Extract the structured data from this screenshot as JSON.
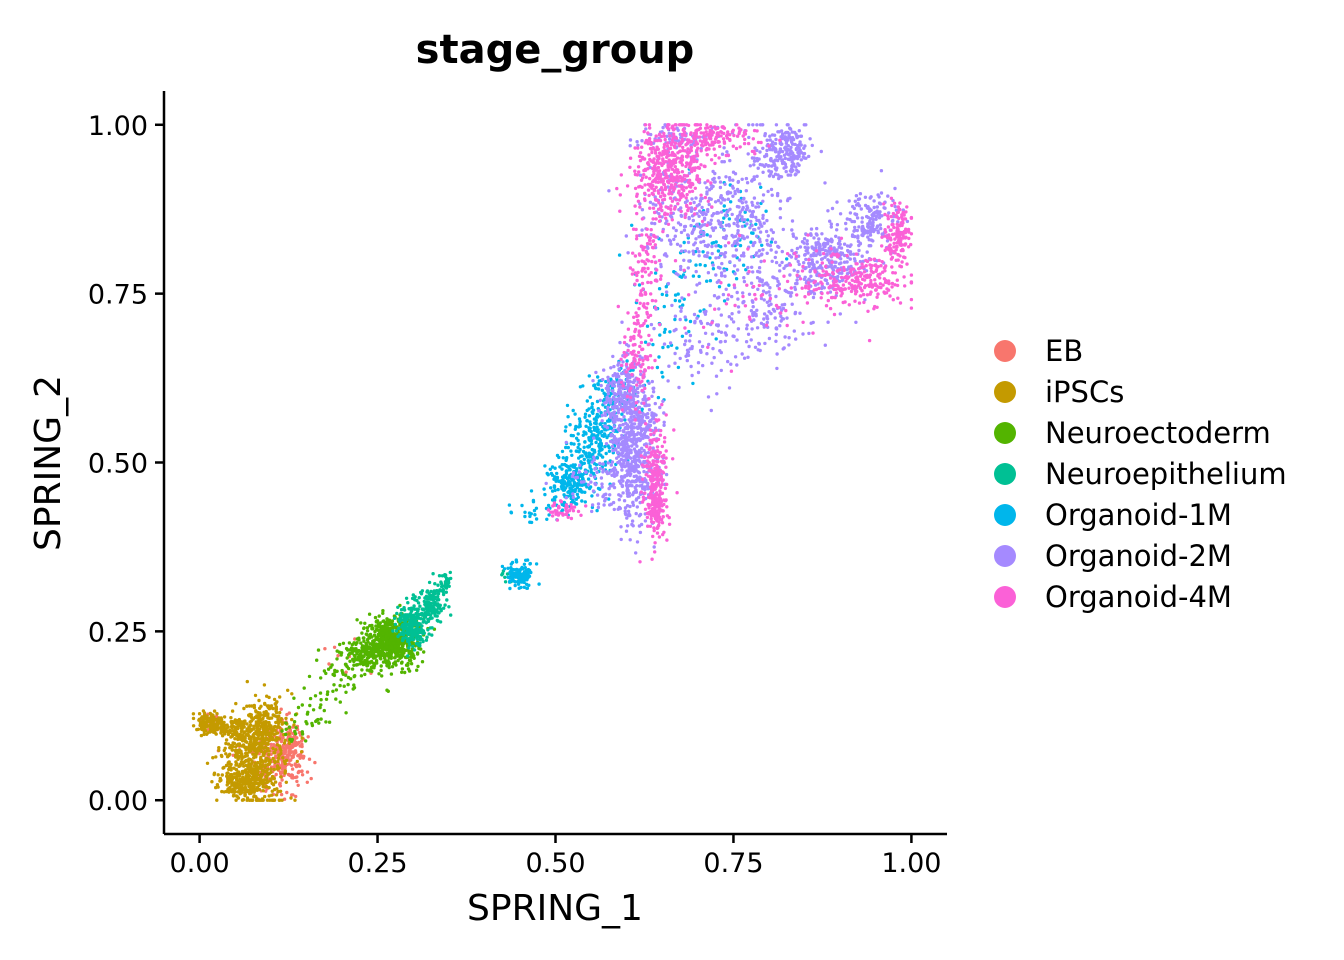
{
  "chart_data": {
    "type": "scatter",
    "title": "stage_group",
    "xlabel": "SPRING_1",
    "ylabel": "SPRING_2",
    "xlim": [
      -0.05,
      1.05
    ],
    "ylim": [
      -0.05,
      1.05
    ],
    "x_ticks": [
      {
        "value": 0.0,
        "label": "0.00"
      },
      {
        "value": 0.25,
        "label": "0.25"
      },
      {
        "value": 0.5,
        "label": "0.50"
      },
      {
        "value": 0.75,
        "label": "0.75"
      },
      {
        "value": 1.0,
        "label": "1.00"
      }
    ],
    "y_ticks": [
      {
        "value": 0.0,
        "label": "0.00"
      },
      {
        "value": 0.25,
        "label": "0.25"
      },
      {
        "value": 0.5,
        "label": "0.50"
      },
      {
        "value": 0.75,
        "label": "0.75"
      },
      {
        "value": 1.0,
        "label": "1.00"
      }
    ],
    "grid": false,
    "legend_position": "right",
    "series": [
      {
        "name": "EB",
        "color": "#F8766D",
        "clusters": [
          {
            "center": [
              0.115,
              0.06
            ],
            "spread": [
              0.018,
              0.028
            ],
            "count": 220
          },
          {
            "center": [
              0.13,
              0.08
            ],
            "spread": [
              0.008,
              0.015
            ],
            "count": 60
          },
          {
            "center": [
              0.09,
              0.05
            ],
            "spread": [
              0.02,
              0.02
            ],
            "count": 40
          },
          {
            "center": [
              0.015,
              0.115
            ],
            "spread": [
              0.01,
              0.006
            ],
            "count": 25
          },
          {
            "center": [
              0.22,
              0.22
            ],
            "spread": [
              0.03,
              0.015
            ],
            "count": 14
          }
        ]
      },
      {
        "name": "iPSCs",
        "color": "#C49A00",
        "clusters": [
          {
            "center": [
              0.075,
              0.06
            ],
            "spread": [
              0.022,
              0.035
            ],
            "count": 520
          },
          {
            "center": [
              0.065,
              0.025
            ],
            "spread": [
              0.015,
              0.01
            ],
            "count": 140
          },
          {
            "center": [
              0.09,
              0.11
            ],
            "spread": [
              0.015,
              0.02
            ],
            "count": 160
          },
          {
            "center": [
              0.015,
              0.115
            ],
            "spread": [
              0.01,
              0.008
            ],
            "count": 140
          },
          {
            "center": [
              0.045,
              0.105
            ],
            "spread": [
              0.012,
              0.008
            ],
            "count": 60
          },
          {
            "center": [
              0.1,
              0.14
            ],
            "spread": [
              0.008,
              0.006
            ],
            "count": 20
          }
        ]
      },
      {
        "name": "Neuroectoderm",
        "color": "#53B400",
        "clusters": [
          {
            "center": [
              0.27,
              0.235
            ],
            "spread": [
              0.018,
              0.018
            ],
            "count": 650
          },
          {
            "center": [
              0.23,
              0.215
            ],
            "spread": [
              0.015,
              0.012
            ],
            "count": 130
          },
          {
            "center": [
              0.2,
              0.18
            ],
            "spread": [
              0.018,
              0.018
            ],
            "count": 45
          },
          {
            "center": [
              0.16,
              0.13
            ],
            "spread": [
              0.015,
              0.018
            ],
            "count": 30
          },
          {
            "center": [
              0.13,
              0.1
            ],
            "spread": [
              0.012,
              0.012
            ],
            "count": 14
          }
        ]
      },
      {
        "name": "Neuroepithelium",
        "color": "#00C094",
        "clusters": [
          {
            "center": [
              0.3,
              0.26
            ],
            "spread": [
              0.012,
              0.015
            ],
            "count": 240
          },
          {
            "center": [
              0.325,
              0.29
            ],
            "spread": [
              0.01,
              0.012
            ],
            "count": 130
          },
          {
            "center": [
              0.345,
              0.32
            ],
            "spread": [
              0.006,
              0.008
            ],
            "count": 35
          },
          {
            "center": [
              0.43,
              0.33
            ],
            "spread": [
              0.008,
              0.006
            ],
            "count": 10
          }
        ]
      },
      {
        "name": "Organoid-1M",
        "color": "#00B6EB",
        "clusters": [
          {
            "center": [
              0.45,
              0.335
            ],
            "spread": [
              0.008,
              0.008
            ],
            "count": 130
          },
          {
            "center": [
              0.52,
              0.47
            ],
            "spread": [
              0.015,
              0.022
            ],
            "count": 210
          },
          {
            "center": [
              0.555,
              0.53
            ],
            "spread": [
              0.018,
              0.03
            ],
            "count": 240
          },
          {
            "center": [
              0.59,
              0.6
            ],
            "spread": [
              0.018,
              0.02
            ],
            "count": 110
          },
          {
            "center": [
              0.47,
              0.43
            ],
            "spread": [
              0.02,
              0.012
            ],
            "count": 25
          },
          {
            "center": [
              0.66,
              0.73
            ],
            "spread": [
              0.03,
              0.06
            ],
            "count": 55
          },
          {
            "center": [
              0.74,
              0.85
            ],
            "spread": [
              0.03,
              0.04
            ],
            "count": 60
          },
          {
            "center": [
              0.7,
              0.79
            ],
            "spread": [
              0.03,
              0.03
            ],
            "count": 30
          }
        ]
      },
      {
        "name": "Organoid-2M",
        "color": "#A58AFF",
        "clusters": [
          {
            "center": [
              0.61,
              0.53
            ],
            "spread": [
              0.018,
              0.06
            ],
            "count": 650
          },
          {
            "center": [
              0.59,
              0.6
            ],
            "spread": [
              0.015,
              0.02
            ],
            "count": 130
          },
          {
            "center": [
              0.56,
              0.47
            ],
            "spread": [
              0.025,
              0.02
            ],
            "count": 70
          },
          {
            "center": [
              0.76,
              0.86
            ],
            "spread": [
              0.035,
              0.06
            ],
            "count": 320
          },
          {
            "center": [
              0.82,
              0.96
            ],
            "spread": [
              0.018,
              0.02
            ],
            "count": 200
          },
          {
            "center": [
              0.68,
              0.86
            ],
            "spread": [
              0.035,
              0.045
            ],
            "count": 200
          },
          {
            "center": [
              0.88,
              0.8
            ],
            "spread": [
              0.03,
              0.025
            ],
            "count": 300
          },
          {
            "center": [
              0.94,
              0.86
            ],
            "spread": [
              0.02,
              0.02
            ],
            "count": 160
          },
          {
            "center": [
              0.8,
              0.72
            ],
            "spread": [
              0.035,
              0.03
            ],
            "count": 130
          },
          {
            "center": [
              0.7,
              0.68
            ],
            "spread": [
              0.03,
              0.04
            ],
            "count": 80
          },
          {
            "center": [
              0.67,
              0.98
            ],
            "spread": [
              0.03,
              0.012
            ],
            "count": 60
          }
        ]
      },
      {
        "name": "Organoid-4M",
        "color": "#FB61D7",
        "clusters": [
          {
            "center": [
              0.64,
              0.47
            ],
            "spread": [
              0.008,
              0.045
            ],
            "count": 220
          },
          {
            "center": [
              0.64,
              0.43
            ],
            "spread": [
              0.008,
              0.012
            ],
            "count": 70
          },
          {
            "center": [
              0.61,
              0.66
            ],
            "spread": [
              0.012,
              0.04
            ],
            "count": 100
          },
          {
            "center": [
              0.625,
              0.79
            ],
            "spread": [
              0.01,
              0.06
            ],
            "count": 110
          },
          {
            "center": [
              0.66,
              0.93
            ],
            "spread": [
              0.025,
              0.035
            ],
            "count": 420
          },
          {
            "center": [
              0.72,
              0.98
            ],
            "spread": [
              0.035,
              0.012
            ],
            "count": 160
          },
          {
            "center": [
              0.92,
              0.77
            ],
            "spread": [
              0.035,
              0.02
            ],
            "count": 250
          },
          {
            "center": [
              0.98,
              0.84
            ],
            "spread": [
              0.01,
              0.02
            ],
            "count": 130
          },
          {
            "center": [
              0.51,
              0.43
            ],
            "spread": [
              0.012,
              0.008
            ],
            "count": 40
          },
          {
            "center": [
              0.78,
              0.75
            ],
            "spread": [
              0.05,
              0.04
            ],
            "count": 50
          }
        ]
      }
    ]
  }
}
